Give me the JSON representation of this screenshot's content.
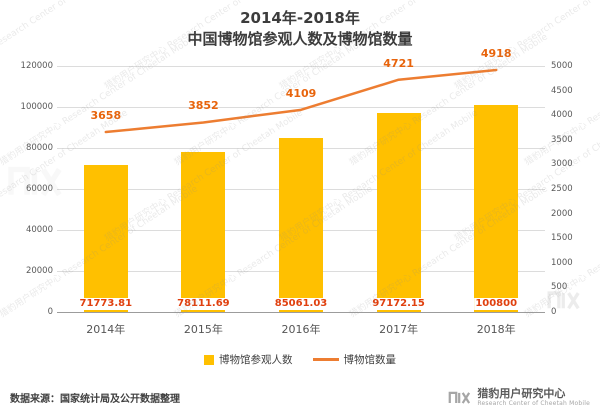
{
  "title": {
    "line1": "2014年-2018年",
    "line2": "中国博物馆参观人数及博物馆数量"
  },
  "chart_data": {
    "type": "bar",
    "subtype": "bar+line combo",
    "title": "2014年-2018年 中国博物馆参观人数及博物馆数量",
    "categories": [
      "2014年",
      "2015年",
      "2016年",
      "2017年",
      "2018年"
    ],
    "series": [
      {
        "name": "博物馆参观人数",
        "type": "bar",
        "axis": "left",
        "values": [
          71773.81,
          78111.69,
          85061.03,
          97172.15,
          100800
        ],
        "labels": [
          "71773.81",
          "78111.69",
          "85061.03",
          "97172.15",
          "100800"
        ],
        "color": "#FFC000",
        "label_color": "#E0400F"
      },
      {
        "name": "博物馆数量",
        "type": "line",
        "axis": "right",
        "values": [
          3658,
          3852,
          4109,
          4721,
          4918
        ],
        "labels": [
          "3658",
          "3852",
          "4109",
          "4721",
          "4918"
        ],
        "color": "#ED7D31",
        "label_color": "#E8640C"
      }
    ],
    "left_axis": {
      "min": 0,
      "max": 120000,
      "step": 20000,
      "ticks": [
        "0",
        "20000",
        "40000",
        "60000",
        "80000",
        "100000",
        "120000"
      ]
    },
    "right_axis": {
      "min": 0,
      "max": 5000,
      "step": 500,
      "ticks": [
        "0",
        "500",
        "1000",
        "1500",
        "2000",
        "2500",
        "3000",
        "3500",
        "4000",
        "4500",
        "5000"
      ]
    },
    "grid": true,
    "legend_position": "bottom"
  },
  "legend": {
    "items": [
      {
        "label": "博物馆参观人数",
        "swatch": "square",
        "color": "#FFC000"
      },
      {
        "label": "博物馆数量",
        "swatch": "line",
        "color": "#ED7D31"
      }
    ]
  },
  "watermark": {
    "text": "猎豹用户研究中心 Research Center of Cheetah Mobile"
  },
  "footer": {
    "source": "数据来源：国家统计局及公开数据整理",
    "brand_cn": "猎豹用户研究中心",
    "brand_en": "Research Center of Cheetah Mobile"
  }
}
